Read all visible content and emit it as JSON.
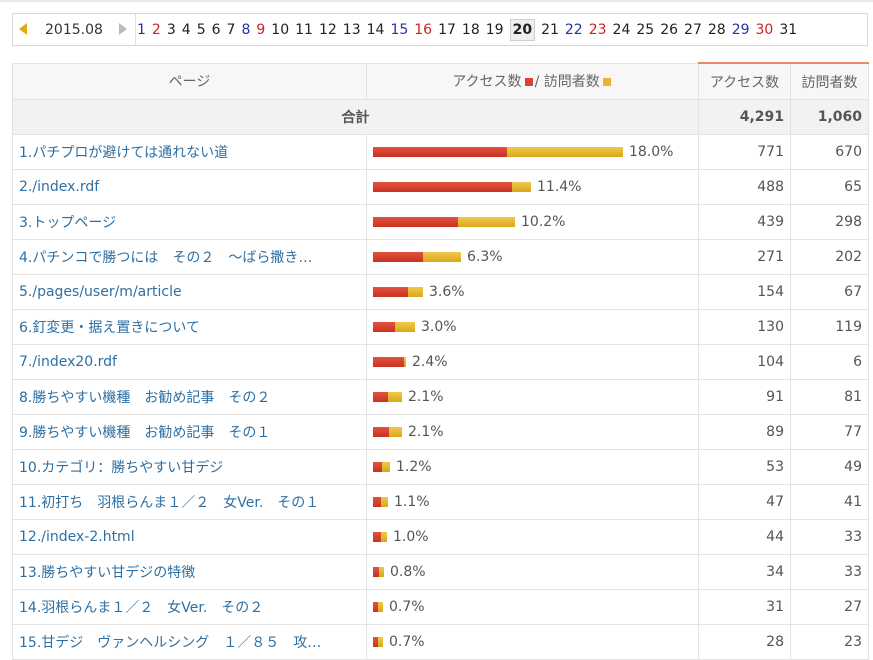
{
  "nav": {
    "month": "2015.08",
    "selected_day": "20",
    "days": [
      {
        "label": "1",
        "type": "sat"
      },
      {
        "label": "2",
        "type": "sun"
      },
      {
        "label": "3",
        "type": "weekday"
      },
      {
        "label": "4",
        "type": "weekday"
      },
      {
        "label": "5",
        "type": "weekday"
      },
      {
        "label": "6",
        "type": "weekday"
      },
      {
        "label": "7",
        "type": "weekday"
      },
      {
        "label": "8",
        "type": "sat"
      },
      {
        "label": "9",
        "type": "sun"
      },
      {
        "label": "10",
        "type": "weekday"
      },
      {
        "label": "11",
        "type": "weekday"
      },
      {
        "label": "12",
        "type": "weekday"
      },
      {
        "label": "13",
        "type": "weekday"
      },
      {
        "label": "14",
        "type": "weekday"
      },
      {
        "label": "15",
        "type": "sat"
      },
      {
        "label": "16",
        "type": "sun"
      },
      {
        "label": "17",
        "type": "weekday"
      },
      {
        "label": "18",
        "type": "weekday"
      },
      {
        "label": "19",
        "type": "weekday"
      },
      {
        "label": "20",
        "type": "weekday"
      },
      {
        "label": "21",
        "type": "weekday"
      },
      {
        "label": "22",
        "type": "sat"
      },
      {
        "label": "23",
        "type": "sun"
      },
      {
        "label": "24",
        "type": "weekday"
      },
      {
        "label": "25",
        "type": "weekday"
      },
      {
        "label": "26",
        "type": "weekday"
      },
      {
        "label": "27",
        "type": "weekday"
      },
      {
        "label": "28",
        "type": "weekday"
      },
      {
        "label": "29",
        "type": "sat"
      },
      {
        "label": "30",
        "type": "sun"
      },
      {
        "label": "31",
        "type": "weekday"
      }
    ]
  },
  "table": {
    "headers": {
      "page": "ページ",
      "access_label": "アクセス数",
      "slash": "/",
      "visitor_label": "訪問者数",
      "access": "アクセス数",
      "visitors": "訪問者数"
    },
    "total": {
      "label": "合計",
      "access": "4,291",
      "visitors": "1,060"
    },
    "colors": {
      "access_bar": "#d9432f",
      "visitor_bar": "#e6b62c"
    },
    "rows": [
      {
        "title": "1.パチプロが避けては通れない道",
        "pct": "18.0%",
        "access": "771",
        "visitors": "670"
      },
      {
        "title": "2./index.rdf",
        "pct": "11.4%",
        "access": "488",
        "visitors": "65"
      },
      {
        "title": "3.トップページ",
        "pct": "10.2%",
        "access": "439",
        "visitors": "298"
      },
      {
        "title": "4.パチンコで勝つには　その２　～ばら撒き…",
        "pct": "6.3%",
        "access": "271",
        "visitors": "202"
      },
      {
        "title": "5./pages/user/m/article",
        "pct": "3.6%",
        "access": "154",
        "visitors": "67"
      },
      {
        "title": "6.釘変更・据え置きについて",
        "pct": "3.0%",
        "access": "130",
        "visitors": "119"
      },
      {
        "title": "7./index20.rdf",
        "pct": "2.4%",
        "access": "104",
        "visitors": "6"
      },
      {
        "title": "8.勝ちやすい機種　お勧め記事　その２",
        "pct": "2.1%",
        "access": "91",
        "visitors": "81"
      },
      {
        "title": "9.勝ちやすい機種　お勧め記事　その１",
        "pct": "2.1%",
        "access": "89",
        "visitors": "77"
      },
      {
        "title": "10.カテゴリ：勝ちやすい甘デジ",
        "pct": "1.2%",
        "access": "53",
        "visitors": "49"
      },
      {
        "title": "11.初打ち　羽根らんま１／２　女Ver.　その１",
        "pct": "1.1%",
        "access": "47",
        "visitors": "41"
      },
      {
        "title": "12./index-2.html",
        "pct": "1.0%",
        "access": "44",
        "visitors": "33"
      },
      {
        "title": "13.勝ちやすい甘デジの特徴",
        "pct": "0.8%",
        "access": "34",
        "visitors": "33"
      },
      {
        "title": "14.羽根らんま１／２　女Ver.　その２",
        "pct": "0.7%",
        "access": "31",
        "visitors": "27"
      },
      {
        "title": "15.甘デジ　ヴァンヘルシング　１／８５　攻…",
        "pct": "0.7%",
        "access": "28",
        "visitors": "23"
      }
    ]
  }
}
